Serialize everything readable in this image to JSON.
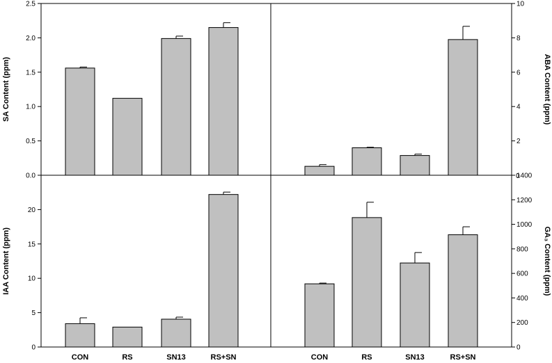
{
  "chart_data": [
    {
      "type": "bar",
      "panel": "top-left",
      "categories": [
        "CON",
        "RS",
        "SN13",
        "RS+SN"
      ],
      "values": [
        1.56,
        1.12,
        1.99,
        2.15
      ],
      "errors": [
        0.015,
        0,
        0.035,
        0.07
      ],
      "ylabel": "SA Content (ppm)",
      "ylim": [
        0,
        2.5
      ],
      "yticks": [
        "0.0",
        "0.5",
        "1.0",
        "1.5",
        "2.0",
        "2.5"
      ],
      "ytick_values": [
        0,
        0.5,
        1.0,
        1.5,
        2.0,
        2.5
      ],
      "y_axis_side": "left",
      "show_category_labels": false
    },
    {
      "type": "bar",
      "panel": "top-right",
      "categories": [
        "CON",
        "RS",
        "SN13",
        "RS+SN"
      ],
      "values": [
        0.52,
        1.6,
        1.15,
        7.9
      ],
      "errors": [
        0.1,
        0.03,
        0.08,
        0.77
      ],
      "ylabel": "ABA Content (ppm)",
      "ylim": [
        0,
        10
      ],
      "yticks": [
        "2",
        "4",
        "6",
        "8",
        "10"
      ],
      "ytick_values": [
        2,
        4,
        6,
        8,
        10
      ],
      "y_axis_side": "right",
      "show_category_labels": false
    },
    {
      "type": "bar",
      "panel": "bottom-left",
      "categories": [
        "CON",
        "RS",
        "SN13",
        "RS+SN"
      ],
      "values": [
        3.4,
        2.9,
        4.05,
        22.2
      ],
      "errors": [
        0.85,
        0,
        0.3,
        0.35
      ],
      "ylabel": "IAA Content (ppm)",
      "ylim": [
        0,
        25
      ],
      "yticks": [
        "0",
        "5",
        "10",
        "15",
        "20"
      ],
      "ytick_values": [
        0,
        5,
        10,
        15,
        20
      ],
      "y_axis_side": "left",
      "show_category_labels": true
    },
    {
      "type": "bar",
      "panel": "bottom-right",
      "categories": [
        "CON",
        "RS",
        "SN13",
        "RS+SN"
      ],
      "values": [
        515,
        1055,
        685,
        915
      ],
      "errors": [
        6,
        125,
        85,
        65
      ],
      "ylabel": "GA₃ Content (ppm)",
      "ylim": [
        0,
        1400
      ],
      "yticks": [
        "0",
        "200",
        "400",
        "600",
        "800",
        "1000",
        "1200",
        "1400"
      ],
      "ytick_values": [
        0,
        200,
        400,
        600,
        800,
        1000,
        1200,
        1400
      ],
      "y_axis_side": "right",
      "show_category_labels": true
    }
  ],
  "extra_ticks": {
    "top_right_zero": "0"
  }
}
